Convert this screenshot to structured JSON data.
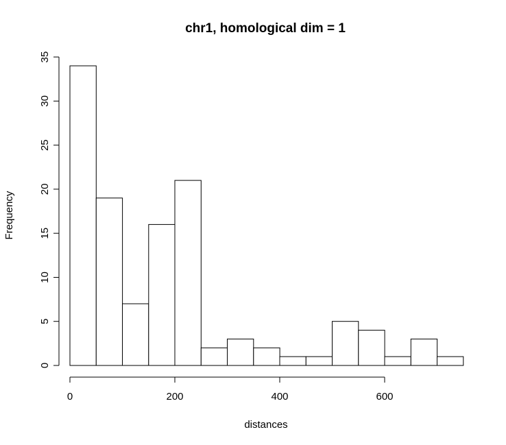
{
  "chart_data": {
    "type": "bar",
    "title": "chr1, homological dim = 1",
    "xlabel": "distances",
    "ylabel": "Frequency",
    "bin_width": 50,
    "bins": [
      {
        "from": 0,
        "to": 50,
        "count": 34
      },
      {
        "from": 50,
        "to": 100,
        "count": 19
      },
      {
        "from": 100,
        "to": 150,
        "count": 7
      },
      {
        "from": 150,
        "to": 200,
        "count": 16
      },
      {
        "from": 200,
        "to": 250,
        "count": 21
      },
      {
        "from": 250,
        "to": 300,
        "count": 2
      },
      {
        "from": 300,
        "to": 350,
        "count": 3
      },
      {
        "from": 350,
        "to": 400,
        "count": 2
      },
      {
        "from": 400,
        "to": 450,
        "count": 1
      },
      {
        "from": 450,
        "to": 500,
        "count": 1
      },
      {
        "from": 500,
        "to": 550,
        "count": 5
      },
      {
        "from": 550,
        "to": 600,
        "count": 4
      },
      {
        "from": 600,
        "to": 650,
        "count": 1
      },
      {
        "from": 650,
        "to": 700,
        "count": 3
      },
      {
        "from": 700,
        "to": 750,
        "count": 1
      }
    ],
    "xticks": [
      0,
      200,
      400,
      600
    ],
    "yticks": [
      0,
      5,
      10,
      15,
      20,
      25,
      30,
      35
    ],
    "xlim": [
      0,
      600
    ],
    "ylim": [
      0,
      35
    ],
    "grid": false
  }
}
